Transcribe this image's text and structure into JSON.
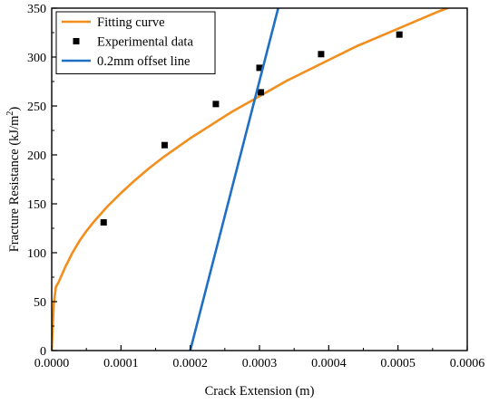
{
  "chart_data": {
    "type": "scatter",
    "title": "",
    "xlabel": "Crack Extension (m)",
    "ylabel": "Fracture Resistance (kJ/m",
    "ylabel_sup": "2",
    "ylabel_tail": ")",
    "xlim": [
      0,
      0.0006
    ],
    "ylim": [
      0,
      350
    ],
    "x_ticks": [
      0,
      0.0001,
      0.0002,
      0.0003,
      0.0004,
      0.0005,
      0.0006
    ],
    "x_tick_labels": [
      "0.0000",
      "0.0001",
      "0.0002",
      "0.0003",
      "0.0004",
      "0.0005",
      "0.0006"
    ],
    "y_ticks": [
      0,
      50,
      100,
      150,
      200,
      250,
      300,
      350
    ],
    "y_tick_labels": [
      "0",
      "50",
      "100",
      "150",
      "200",
      "250",
      "300",
      "350"
    ],
    "grid": false,
    "legend_position": "top-left",
    "series": [
      {
        "name": "Fitting curve",
        "kind": "line",
        "color": "#F28E1C",
        "x": [
          0,
          1.5e-06,
          3e-06,
          6e-06,
          1e-05,
          1.5e-05,
          2e-05,
          3e-05,
          4e-05,
          5e-05,
          6e-05,
          8e-05,
          0.0001,
          0.00012,
          0.00014,
          0.00016,
          0.00018,
          0.0002,
          0.00022,
          0.00024,
          0.00026,
          0.00028,
          0.0003,
          0.00032,
          0.00034,
          0.00036,
          0.00038,
          0.0004,
          0.00042,
          0.00044,
          0.00046,
          0.00048,
          0.0005,
          0.00052,
          0.00054,
          0.00056,
          0.000575
        ],
        "y": [
          0,
          26,
          48,
          65,
          70,
          78,
          86,
          100,
          112,
          122,
          131,
          147,
          161,
          174,
          186,
          197,
          207,
          217,
          226,
          235,
          244,
          252,
          260,
          268,
          276,
          283,
          290,
          297,
          304,
          311,
          317,
          323,
          329,
          335,
          341,
          347,
          351
        ]
      },
      {
        "name": "Experimental data",
        "kind": "scatter",
        "color": "#000000",
        "x": [
          7.5e-05,
          0.000163,
          0.000237,
          0.0003,
          0.000302,
          0.000389,
          0.000502
        ],
        "y": [
          131,
          210,
          252,
          289,
          264,
          303,
          323
        ]
      },
      {
        "name": "0.2mm offset line",
        "kind": "line",
        "color": "#1F6FC4",
        "x": [
          0.0002,
          0.000327
        ],
        "y": [
          0,
          350
        ]
      }
    ]
  }
}
